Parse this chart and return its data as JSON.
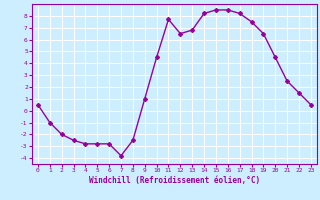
{
  "x": [
    0,
    1,
    2,
    3,
    4,
    5,
    6,
    7,
    8,
    9,
    10,
    11,
    12,
    13,
    14,
    15,
    16,
    17,
    18,
    19,
    20,
    21,
    22,
    23
  ],
  "y": [
    0.5,
    -1.0,
    -2.0,
    -2.5,
    -2.8,
    -2.8,
    -2.8,
    -3.8,
    -2.5,
    1.0,
    4.5,
    7.7,
    6.5,
    6.8,
    8.2,
    8.5,
    8.5,
    8.2,
    7.5,
    6.5,
    4.5,
    2.5,
    1.5,
    0.5
  ],
  "xlim": [
    -0.5,
    23.5
  ],
  "ylim": [
    -4.5,
    9.0
  ],
  "yticks": [
    -4,
    -3,
    -2,
    -1,
    0,
    1,
    2,
    3,
    4,
    5,
    6,
    7,
    8
  ],
  "xticks": [
    0,
    1,
    2,
    3,
    4,
    5,
    6,
    7,
    8,
    9,
    10,
    11,
    12,
    13,
    14,
    15,
    16,
    17,
    18,
    19,
    20,
    21,
    22,
    23
  ],
  "xlabel": "Windchill (Refroidissement éolien,°C)",
  "line_color": "#990099",
  "marker": "D",
  "marker_size": 2,
  "bg_color": "#cceeff",
  "grid_color": "#ffffff",
  "tick_label_color": "#990099",
  "axis_label_color": "#990099",
  "linewidth": 1.0
}
